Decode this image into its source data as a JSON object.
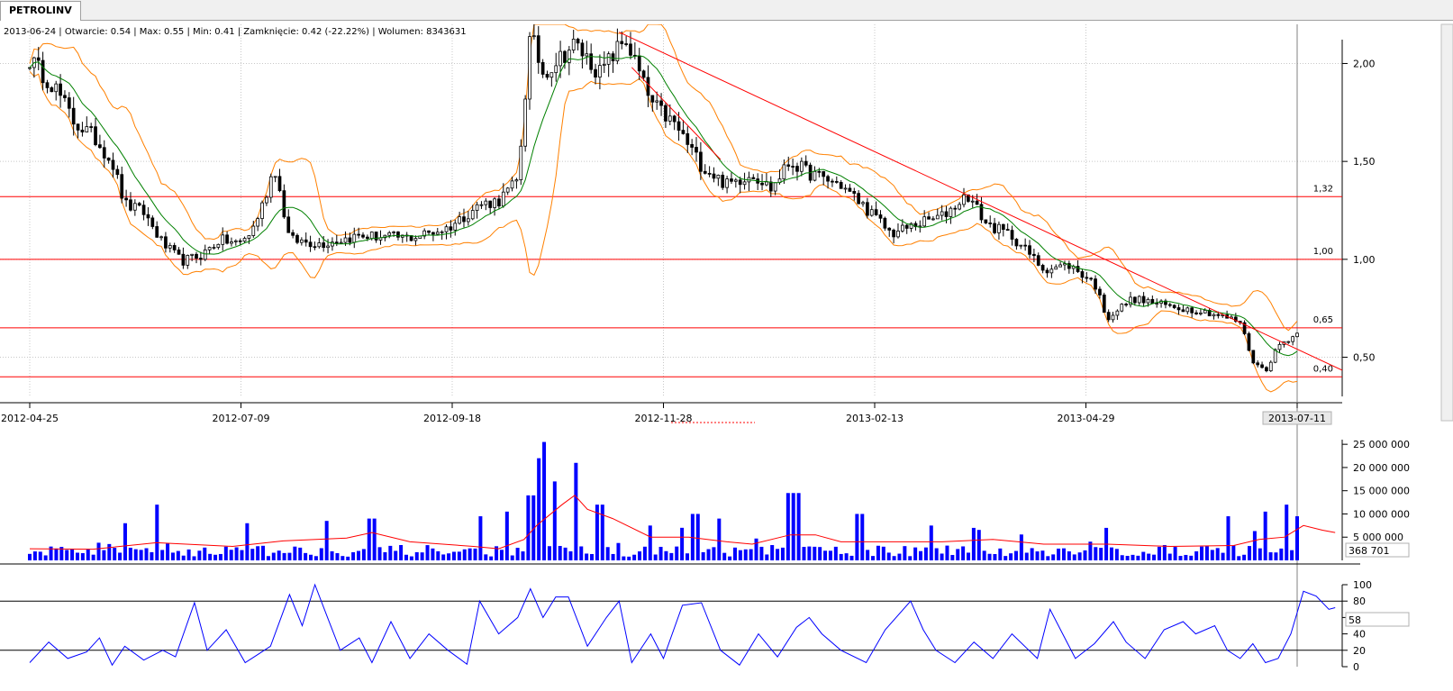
{
  "tab": {
    "label": "PETROLINV"
  },
  "info": {
    "text": "2013-06-24 | Otwarcie: 0.54 | Max: 0.55 | Min: 0.41 | Zamknięcie: 0.42 (-22.22%)  | Wolumen: 8343631"
  },
  "colors": {
    "up_candle": "#ffffff",
    "down_candle": "#000000",
    "ma": "#008000",
    "band": "#ff8000",
    "levels": "#ff0000",
    "trendline": "#ff0000",
    "volume_bar": "#0000ff",
    "volume_ma": "#ff0000",
    "oscillator": "#0000ff",
    "grid": "#c8c8c8"
  },
  "chart_data": [
    {
      "type": "candlestick",
      "x_tick_labels": [
        "2012-04-25",
        "2012-07-09",
        "2012-09-18",
        "2012-11-28",
        "2013-02-13",
        "2013-04-29",
        "2013-07-11"
      ],
      "y_tick_labels": [
        "2,00",
        "1,50",
        "1,00",
        "0,50"
      ],
      "ylim": [
        0.3,
        2.2
      ],
      "horizontal_levels": [
        {
          "value": 1.32,
          "label": "1,32"
        },
        {
          "value": 1.0,
          "label": "1,00"
        },
        {
          "value": 0.65,
          "label": "0,65"
        },
        {
          "value": 0.4,
          "label": "0,40"
        }
      ],
      "trendlines": [
        {
          "from": {
            "t": 0.465,
            "y": 2.16
          },
          "to": {
            "t": 1.04,
            "y": 0.42
          }
        },
        {
          "from": {
            "t": 0.475,
            "y": 1.98
          },
          "to": {
            "t": 0.545,
            "y": 1.51
          }
        }
      ],
      "close_anchors": [
        [
          0.0,
          2.02
        ],
        [
          0.02,
          1.88
        ],
        [
          0.035,
          1.7
        ],
        [
          0.05,
          1.63
        ],
        [
          0.065,
          1.5
        ],
        [
          0.075,
          1.28
        ],
        [
          0.09,
          1.24
        ],
        [
          0.105,
          1.08
        ],
        [
          0.12,
          0.99
        ],
        [
          0.135,
          1.02
        ],
        [
          0.15,
          1.1
        ],
        [
          0.165,
          1.08
        ],
        [
          0.175,
          1.14
        ],
        [
          0.185,
          1.3
        ],
        [
          0.193,
          1.48
        ],
        [
          0.205,
          1.1
        ],
        [
          0.23,
          1.08
        ],
        [
          0.26,
          1.12
        ],
        [
          0.3,
          1.11
        ],
        [
          0.33,
          1.16
        ],
        [
          0.355,
          1.28
        ],
        [
          0.37,
          1.3
        ],
        [
          0.385,
          1.4
        ],
        [
          0.395,
          2.15
        ],
        [
          0.405,
          1.95
        ],
        [
          0.43,
          2.1
        ],
        [
          0.45,
          1.95
        ],
        [
          0.47,
          2.13
        ],
        [
          0.49,
          1.8
        ],
        [
          0.51,
          1.68
        ],
        [
          0.53,
          1.48
        ],
        [
          0.55,
          1.38
        ],
        [
          0.57,
          1.44
        ],
        [
          0.585,
          1.36
        ],
        [
          0.6,
          1.5
        ],
        [
          0.615,
          1.44
        ],
        [
          0.64,
          1.38
        ],
        [
          0.66,
          1.26
        ],
        [
          0.68,
          1.13
        ],
        [
          0.7,
          1.18
        ],
        [
          0.72,
          1.22
        ],
        [
          0.74,
          1.33
        ],
        [
          0.755,
          1.18
        ],
        [
          0.775,
          1.12
        ],
        [
          0.8,
          0.95
        ],
        [
          0.82,
          0.97
        ],
        [
          0.84,
          0.88
        ],
        [
          0.85,
          0.7
        ],
        [
          0.87,
          0.8
        ],
        [
          0.9,
          0.76
        ],
        [
          0.93,
          0.73
        ],
        [
          0.955,
          0.68
        ],
        [
          0.965,
          0.48
        ],
        [
          0.975,
          0.43
        ],
        [
          0.985,
          0.56
        ],
        [
          1.0,
          0.62
        ],
        [
          1.012,
          0.61
        ]
      ]
    },
    {
      "type": "bar",
      "name": "Wolumen",
      "y_tick_labels": [
        "25 000 000",
        "20 000 000",
        "15 000 000",
        "10 000 000",
        "5 000 000"
      ],
      "ylim": [
        0,
        26000000
      ],
      "current_value_label": "368 701",
      "spikes": [
        [
          0.055,
          3800000
        ],
        [
          0.075,
          8000000
        ],
        [
          0.1,
          12000000
        ],
        [
          0.17,
          8000000
        ],
        [
          0.235,
          8500000
        ],
        [
          0.27,
          9000000
        ],
        [
          0.355,
          9500000
        ],
        [
          0.375,
          10500000
        ],
        [
          0.395,
          14000000
        ],
        [
          0.4,
          22000000
        ],
        [
          0.405,
          25500000
        ],
        [
          0.415,
          17000000
        ],
        [
          0.43,
          21000000
        ],
        [
          0.45,
          12000000
        ],
        [
          0.49,
          7500000
        ],
        [
          0.525,
          10000000
        ],
        [
          0.545,
          9000000
        ],
        [
          0.6,
          14500000
        ],
        [
          0.605,
          14500000
        ],
        [
          0.655,
          10000000
        ],
        [
          0.71,
          7500000
        ],
        [
          0.745,
          7000000
        ],
        [
          0.85,
          7000000
        ],
        [
          0.945,
          9500000
        ],
        [
          0.975,
          10500000
        ],
        [
          0.99,
          12000000
        ],
        [
          1.0,
          9500000
        ],
        [
          1.01,
          8000000
        ]
      ],
      "ma_anchors": [
        [
          0.0,
          2500000
        ],
        [
          0.05,
          2400000
        ],
        [
          0.1,
          3800000
        ],
        [
          0.16,
          3000000
        ],
        [
          0.2,
          4200000
        ],
        [
          0.25,
          4800000
        ],
        [
          0.27,
          6000000
        ],
        [
          0.3,
          4000000
        ],
        [
          0.35,
          3000000
        ],
        [
          0.37,
          2500000
        ],
        [
          0.39,
          4500000
        ],
        [
          0.4,
          7500000
        ],
        [
          0.42,
          12000000
        ],
        [
          0.43,
          14000000
        ],
        [
          0.44,
          11000000
        ],
        [
          0.46,
          9000000
        ],
        [
          0.49,
          5000000
        ],
        [
          0.52,
          5000000
        ],
        [
          0.55,
          4000000
        ],
        [
          0.57,
          3500000
        ],
        [
          0.6,
          5500000
        ],
        [
          0.62,
          5500000
        ],
        [
          0.64,
          4000000
        ],
        [
          0.68,
          4000000
        ],
        [
          0.72,
          4000000
        ],
        [
          0.76,
          4500000
        ],
        [
          0.8,
          3500000
        ],
        [
          0.85,
          3500000
        ],
        [
          0.9,
          3000000
        ],
        [
          0.95,
          3200000
        ],
        [
          0.97,
          4500000
        ],
        [
          0.99,
          5000000
        ],
        [
          1.005,
          7500000
        ],
        [
          1.02,
          6500000
        ],
        [
          1.03,
          6000000
        ]
      ]
    },
    {
      "type": "line",
      "y_tick_labels": [
        "100",
        "80",
        "60",
        "40",
        "20",
        "0"
      ],
      "ylim": [
        0,
        100
      ],
      "horizontal_levels": [
        80,
        20
      ],
      "current_value_label": "58",
      "anchors": [
        [
          0.0,
          5
        ],
        [
          0.015,
          30
        ],
        [
          0.03,
          10
        ],
        [
          0.045,
          18
        ],
        [
          0.055,
          35
        ],
        [
          0.065,
          2
        ],
        [
          0.075,
          25
        ],
        [
          0.09,
          8
        ],
        [
          0.105,
          20
        ],
        [
          0.115,
          12
        ],
        [
          0.13,
          78
        ],
        [
          0.14,
          20
        ],
        [
          0.155,
          45
        ],
        [
          0.17,
          5
        ],
        [
          0.18,
          15
        ],
        [
          0.19,
          25
        ],
        [
          0.205,
          88
        ],
        [
          0.215,
          50
        ],
        [
          0.225,
          100
        ],
        [
          0.235,
          60
        ],
        [
          0.245,
          20
        ],
        [
          0.26,
          35
        ],
        [
          0.27,
          5
        ],
        [
          0.285,
          55
        ],
        [
          0.3,
          10
        ],
        [
          0.315,
          40
        ],
        [
          0.33,
          20
        ],
        [
          0.345,
          3
        ],
        [
          0.355,
          80
        ],
        [
          0.37,
          40
        ],
        [
          0.385,
          60
        ],
        [
          0.395,
          95
        ],
        [
          0.405,
          60
        ],
        [
          0.415,
          85
        ],
        [
          0.425,
          85
        ],
        [
          0.44,
          25
        ],
        [
          0.455,
          60
        ],
        [
          0.465,
          80
        ],
        [
          0.475,
          5
        ],
        [
          0.49,
          40
        ],
        [
          0.5,
          10
        ],
        [
          0.515,
          75
        ],
        [
          0.53,
          78
        ],
        [
          0.545,
          20
        ],
        [
          0.56,
          2
        ],
        [
          0.575,
          40
        ],
        [
          0.59,
          12
        ],
        [
          0.605,
          48
        ],
        [
          0.615,
          60
        ],
        [
          0.625,
          40
        ],
        [
          0.64,
          20
        ],
        [
          0.66,
          5
        ],
        [
          0.675,
          45
        ],
        [
          0.695,
          80
        ],
        [
          0.705,
          45
        ],
        [
          0.715,
          20
        ],
        [
          0.73,
          5
        ],
        [
          0.745,
          30
        ],
        [
          0.76,
          10
        ],
        [
          0.775,
          40
        ],
        [
          0.795,
          10
        ],
        [
          0.805,
          70
        ],
        [
          0.815,
          40
        ],
        [
          0.825,
          10
        ],
        [
          0.84,
          28
        ],
        [
          0.855,
          55
        ],
        [
          0.865,
          30
        ],
        [
          0.88,
          10
        ],
        [
          0.895,
          45
        ],
        [
          0.91,
          55
        ],
        [
          0.92,
          40
        ],
        [
          0.935,
          50
        ],
        [
          0.945,
          20
        ],
        [
          0.955,
          10
        ],
        [
          0.965,
          28
        ],
        [
          0.975,
          5
        ],
        [
          0.985,
          10
        ],
        [
          0.995,
          40
        ],
        [
          1.005,
          92
        ],
        [
          1.015,
          86
        ],
        [
          1.025,
          70
        ],
        [
          1.03,
          72
        ]
      ]
    }
  ]
}
